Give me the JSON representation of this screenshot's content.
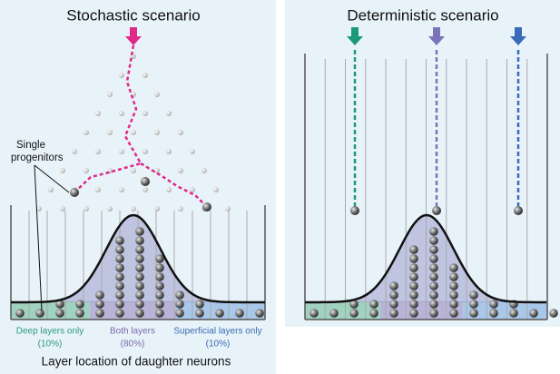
{
  "panels": [
    {
      "title": "Stochastic scenario",
      "annotation": [
        "Single",
        "progenitors"
      ],
      "regions": [
        {
          "label": "Deep layers only",
          "share": "(10%)"
        },
        {
          "label": "Both layers",
          "share": "(80%)"
        },
        {
          "label": "Superficial layers only",
          "share": "(10%)"
        }
      ],
      "axis_label": "Layer location of daughter neurons"
    },
    {
      "title": "Deterministic scenario"
    }
  ]
}
